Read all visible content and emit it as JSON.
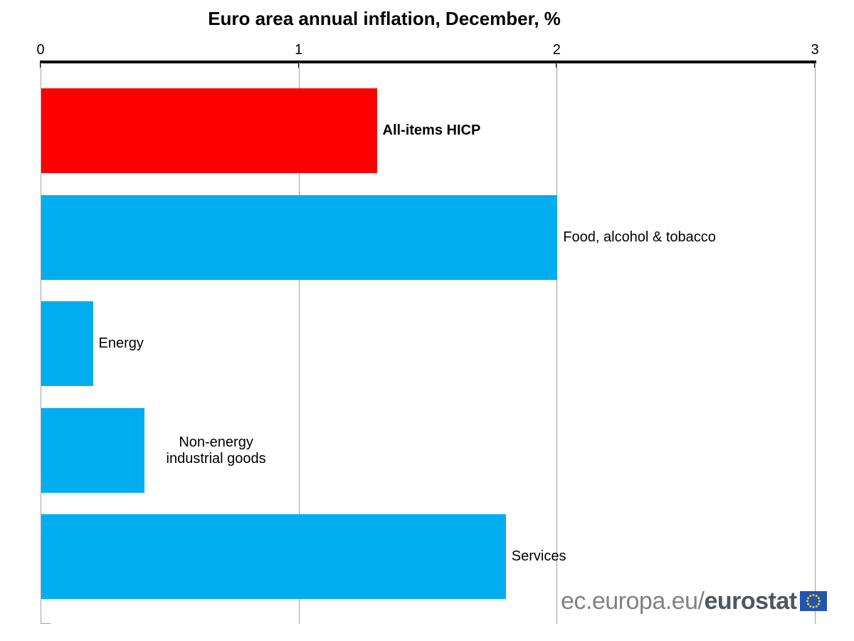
{
  "chart_data": {
    "type": "bar",
    "orientation": "horizontal",
    "title": "Euro area annual inflation, December, %",
    "categories": [
      "All-items HICP",
      "Food, alcohol & tobacco",
      "Energy",
      "Non-energy industrial goods",
      "Services"
    ],
    "values": [
      1.3,
      2.0,
      0.2,
      0.4,
      1.8
    ],
    "bar_colors": [
      "#ff0000",
      "#00aeef",
      "#00aeef",
      "#00aeef",
      "#00aeef"
    ],
    "label_bold": [
      true,
      false,
      false,
      false,
      false
    ],
    "xlim": [
      0,
      3
    ],
    "x_ticks": [
      "0",
      "1",
      "2",
      "3"
    ],
    "grid": "vertical gridlines at integer ticks",
    "legend": "none",
    "axis_color": "#000000",
    "gridline_color": "#a0a0a0",
    "highlight": {
      "category": "All-items HICP",
      "color": "#ff0000"
    }
  },
  "watermark": {
    "prefix": "ec.europa.eu/",
    "brand": "eurostat",
    "prefix_color": "#808285",
    "brand_color": "#4e565e",
    "flag": {
      "background": "#2353b5",
      "stars": "#f0d500"
    }
  }
}
